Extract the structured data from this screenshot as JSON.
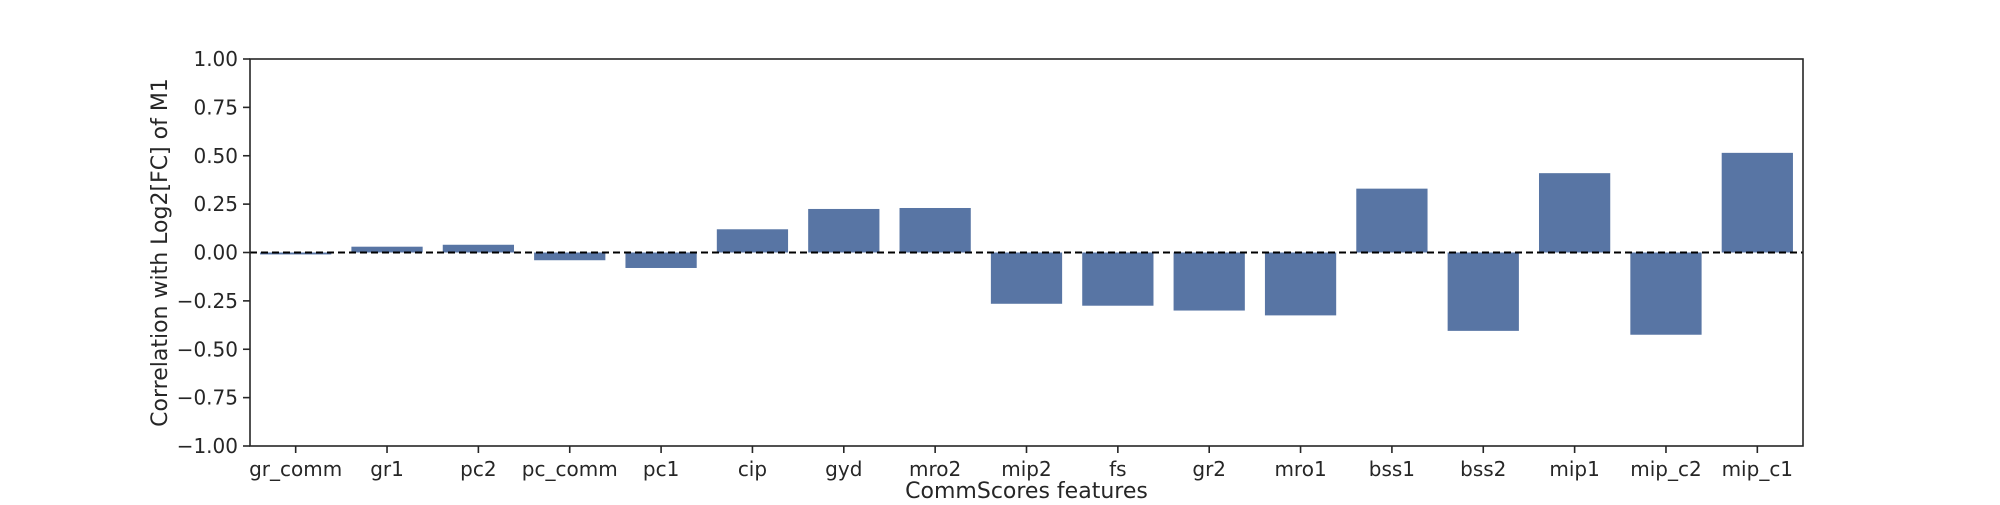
{
  "chart_data": {
    "type": "bar",
    "categories": [
      "gr_comm",
      "gr1",
      "pc2",
      "pc_comm",
      "pc1",
      "cip",
      "gyd",
      "mro2",
      "mip2",
      "fs",
      "gr2",
      "mro1",
      "bss1",
      "bss2",
      "mip1",
      "mip_c2",
      "mip_c1"
    ],
    "values": [
      -0.01,
      0.03,
      0.04,
      -0.04,
      -0.08,
      0.12,
      0.225,
      0.23,
      -0.265,
      -0.275,
      -0.3,
      -0.325,
      0.33,
      -0.405,
      0.41,
      -0.425,
      0.515
    ],
    "title": "",
    "xlabel": "CommScores features",
    "ylabel": "Correlation with Log2[FC] of M1",
    "ylim": [
      -1.0,
      1.0
    ],
    "yticks": [
      -1.0,
      -0.75,
      -0.5,
      -0.25,
      0.0,
      0.25,
      0.5,
      0.75,
      1.0
    ],
    "ytick_labels": [
      "−1.00",
      "−0.75",
      "−0.50",
      "−0.25",
      "0.00",
      "0.25",
      "0.50",
      "0.75",
      "1.00"
    ],
    "reference_line": 0.0,
    "grid": false,
    "colors": {
      "bar": "#5875a4",
      "axis": "#262626",
      "reference_line": "#000000"
    }
  }
}
